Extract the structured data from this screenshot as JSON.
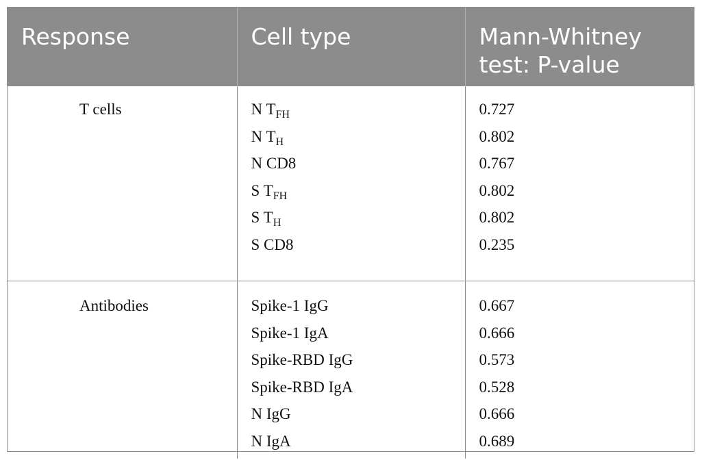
{
  "table": {
    "headers": [
      "Response",
      "Cell type",
      "Mann-Whitney test: P-value"
    ],
    "groups": [
      {
        "response": "T cells",
        "rows": [
          {
            "prefix": "N T",
            "sub": "FH",
            "p": "0.727"
          },
          {
            "prefix": "N T",
            "sub": "H",
            "p": "0.802"
          },
          {
            "prefix": "N CD8",
            "sub": "",
            "p": "0.767"
          },
          {
            "prefix": "S T",
            "sub": "FH",
            "p": "0.802"
          },
          {
            "prefix": "S T",
            "sub": "H",
            "p": "0.802"
          },
          {
            "prefix": "S CD8",
            "sub": "",
            "p": "0.235"
          }
        ]
      },
      {
        "response": "Antibodies",
        "rows": [
          {
            "prefix": "Spike-1 IgG",
            "sub": "",
            "p": "0.667"
          },
          {
            "prefix": "Spike-1 IgA",
            "sub": "",
            "p": "0.666"
          },
          {
            "prefix": "Spike-RBD IgG",
            "sub": "",
            "p": "0.573"
          },
          {
            "prefix": "Spike-RBD IgA",
            "sub": "",
            "p": "0.528"
          },
          {
            "prefix": "N IgG",
            "sub": "",
            "p": "0.666"
          },
          {
            "prefix": "N IgA",
            "sub": "",
            "p": "0.689"
          }
        ]
      }
    ]
  }
}
